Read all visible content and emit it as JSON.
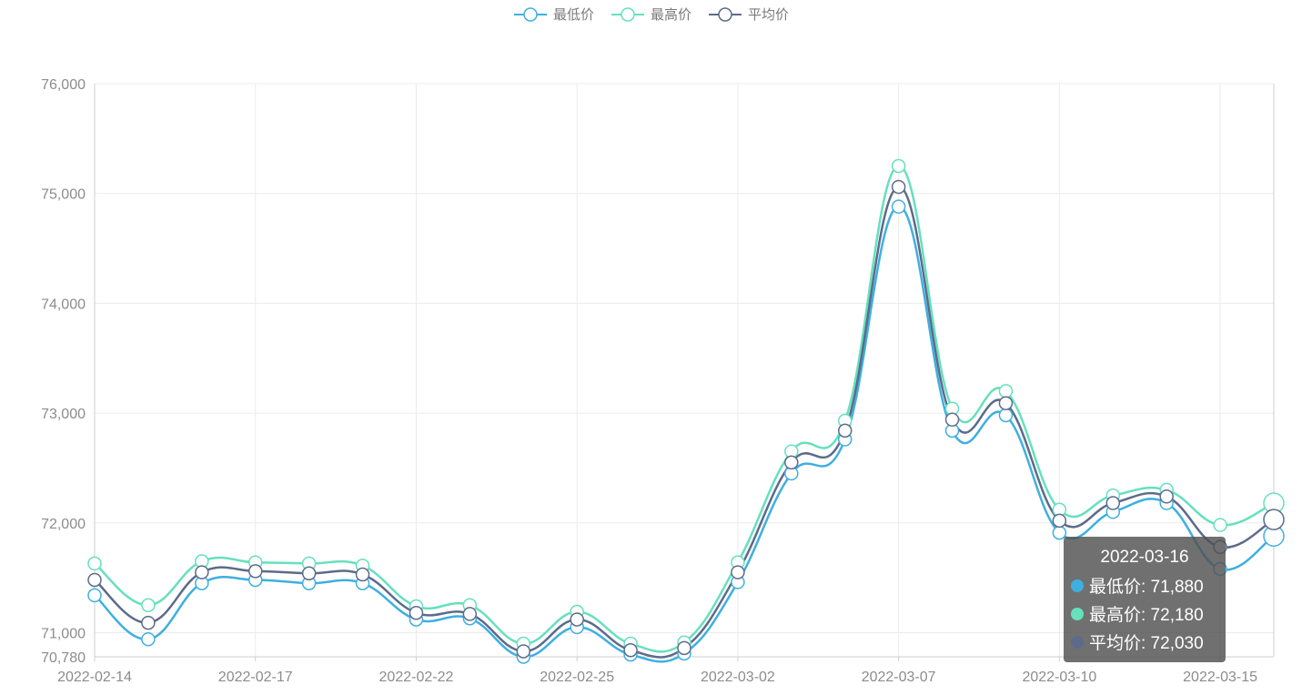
{
  "legend": [
    {
      "name": "最低价",
      "color": "#3fafe0"
    },
    {
      "name": "最高价",
      "color": "#66e0bd"
    },
    {
      "name": "平均价",
      "color": "#5d6b8a"
    }
  ],
  "tooltip": {
    "title": "2022-03-16",
    "rows": [
      {
        "label": "最低价: 71,880",
        "color": "#3fafe0"
      },
      {
        "label": "最高价: 72,180",
        "color": "#66e0bd"
      },
      {
        "label": "平均价: 72,030",
        "color": "#5d6b8a"
      }
    ]
  },
  "chart_data": {
    "type": "line",
    "smooth": true,
    "x_labels_shown": [
      "2022-02-14",
      "2022-02-17",
      "2022-02-22",
      "2022-02-25",
      "2022-03-02",
      "2022-03-07",
      "2022-03-10",
      "2022-03-15"
    ],
    "x_points": 23,
    "ylim": [
      70780,
      76000
    ],
    "yticks": [
      70780,
      71000,
      72000,
      73000,
      74000,
      75000,
      76000
    ],
    "ytick_labels": [
      "70,780",
      "71,000",
      "72,000",
      "73,000",
      "74,000",
      "75,000",
      "76,000"
    ],
    "grid": true,
    "legend_position": "top-center",
    "series": [
      {
        "name": "最低价",
        "color": "#3fafe0",
        "values": [
          71340,
          70940,
          71450,
          71480,
          71450,
          71450,
          71120,
          71130,
          70780,
          71050,
          70800,
          70810,
          71460,
          72450,
          72760,
          74880,
          72840,
          72980,
          71910,
          72100,
          72180,
          71580,
          71880
        ]
      },
      {
        "name": "最高价",
        "color": "#66e0bd",
        "values": [
          71630,
          71250,
          71650,
          71640,
          71630,
          71610,
          71240,
          71250,
          70900,
          71190,
          70900,
          70910,
          71640,
          72650,
          72930,
          75250,
          73040,
          73200,
          72120,
          72250,
          72300,
          71980,
          72180
        ]
      },
      {
        "name": "平均价",
        "color": "#5d6b8a",
        "values": [
          71480,
          71090,
          71550,
          71560,
          71540,
          71530,
          71180,
          71170,
          70830,
          71120,
          70840,
          70860,
          71550,
          72550,
          72840,
          75060,
          72940,
          73090,
          72020,
          72180,
          72240,
          71780,
          72030
        ]
      }
    ]
  }
}
